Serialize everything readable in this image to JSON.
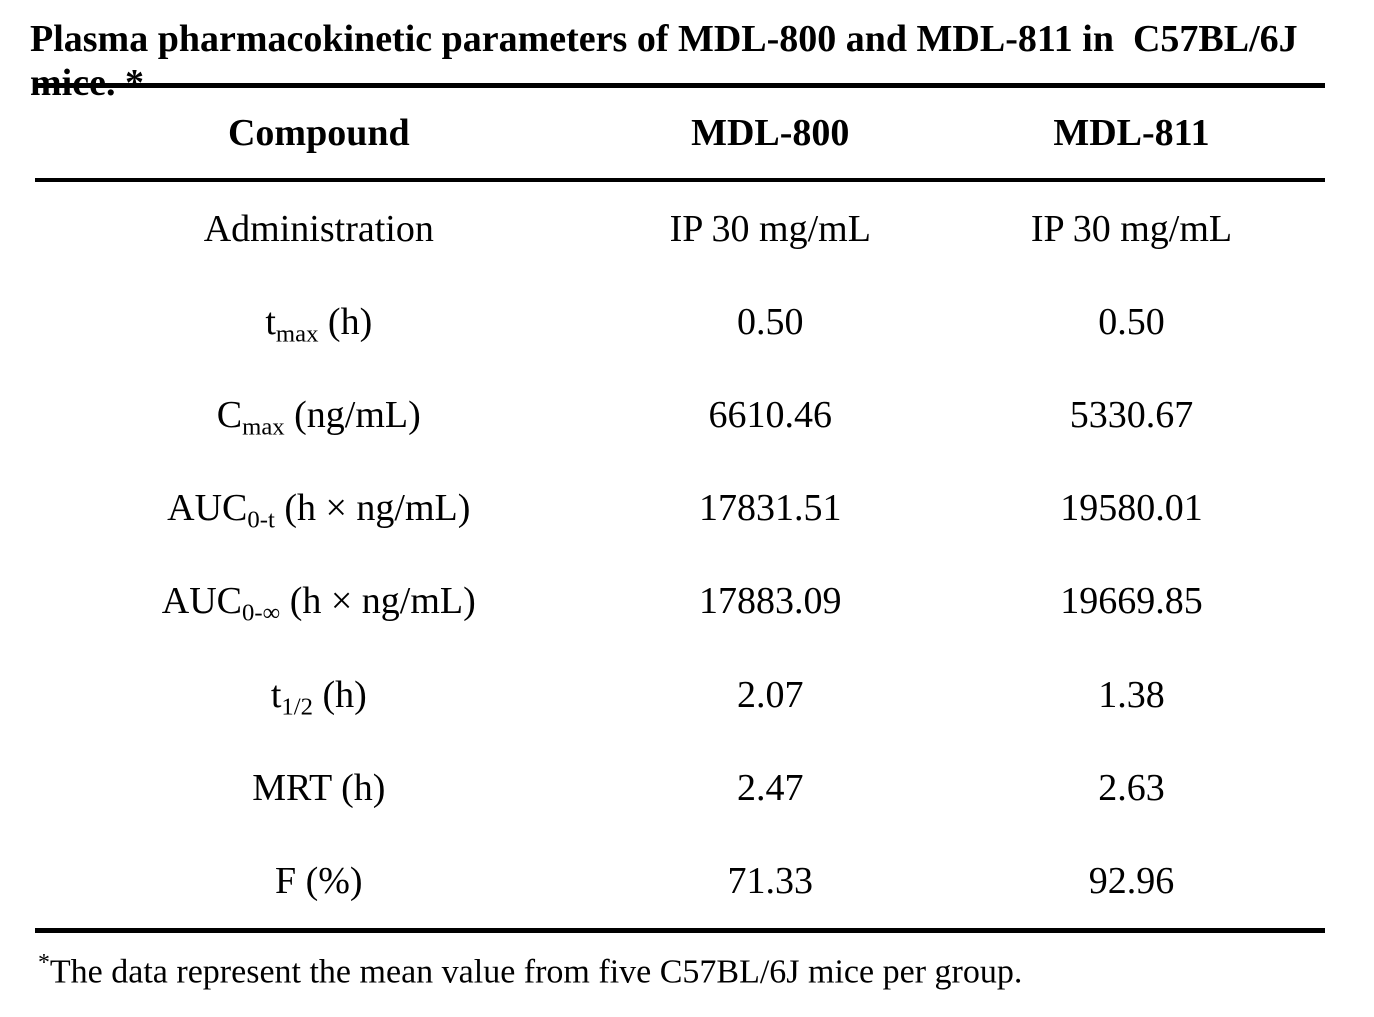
{
  "page": {
    "background_color": "#ffffff",
    "text_color": "#000000"
  },
  "title": "Plasma pharmacokinetic parameters of MDL-800 and MDL-811 in  C57BL/6J mice. *",
  "table": {
    "headers": [
      "Compound",
      "MDL-800",
      "MDL-811"
    ],
    "rows": [
      {
        "label": {
          "base": "Administration",
          "sub": "",
          "rest": ""
        },
        "values": [
          "IP 30 mg/mL",
          "IP 30 mg/mL"
        ]
      },
      {
        "label": {
          "base": "t",
          "sub": "max",
          "rest": " (h)"
        },
        "values": [
          "0.50",
          "0.50"
        ]
      },
      {
        "label": {
          "base": "C",
          "sub": "max",
          "rest": " (ng/mL)"
        },
        "values": [
          "6610.46",
          "5330.67"
        ]
      },
      {
        "label": {
          "base": "AUC",
          "sub": "0-t",
          "rest": " (h × ng/mL)"
        },
        "values": [
          "17831.51",
          "19580.01"
        ]
      },
      {
        "label": {
          "base": "AUC",
          "sub": "0-∞",
          "rest": " (h × ng/mL)"
        },
        "values": [
          "17883.09",
          "19669.85"
        ]
      },
      {
        "label": {
          "base": "t",
          "sub": "1/2",
          "rest": " (h)"
        },
        "values": [
          "2.07",
          "1.38"
        ]
      },
      {
        "label": {
          "base": "MRT (h)",
          "sub": "",
          "rest": ""
        },
        "values": [
          "2.47",
          "2.63"
        ]
      },
      {
        "label": {
          "base": "F (%)",
          "sub": "",
          "rest": ""
        },
        "values": [
          "71.33",
          "92.96"
        ]
      }
    ]
  },
  "footnote": {
    "marker": "*",
    "text": "The data represent the mean value from five C57BL/6J mice per group."
  }
}
